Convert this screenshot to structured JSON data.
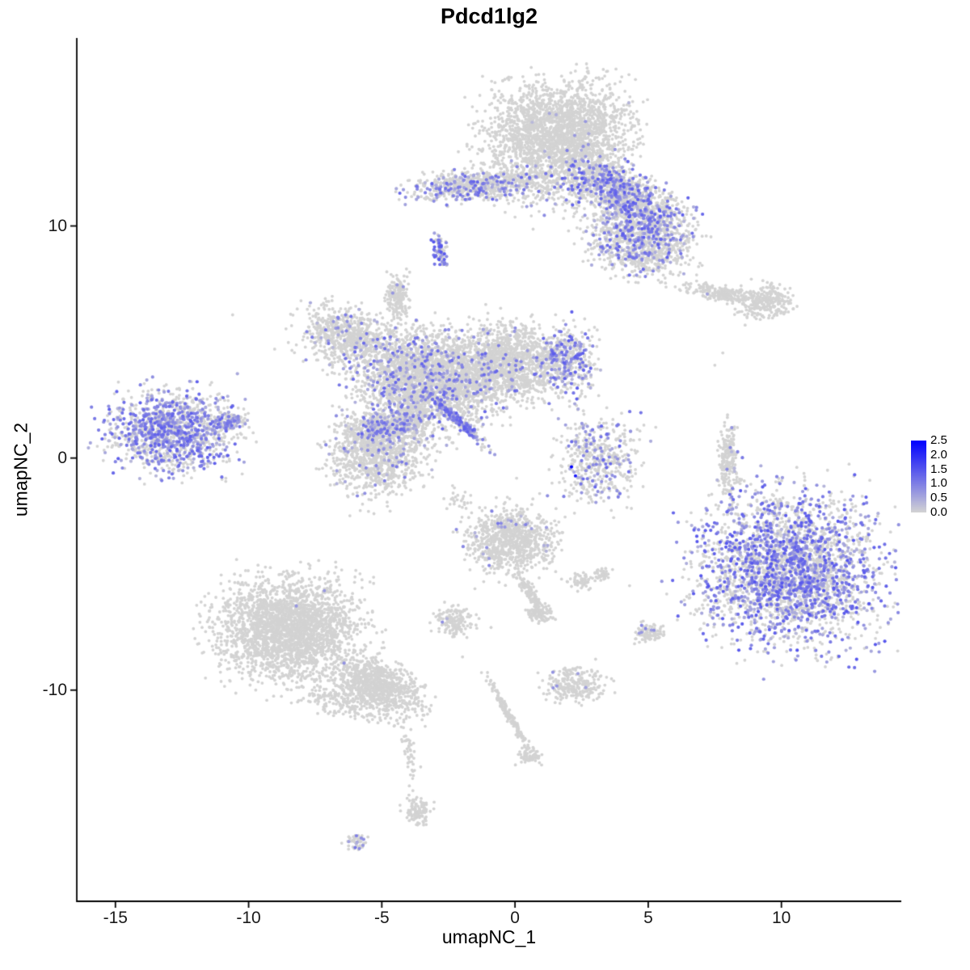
{
  "title": "Pdcd1lg2",
  "colors": {
    "background": "#FFFFFF",
    "axis": "#000000",
    "point_base": "#D3D3D3",
    "point_high": "#0000FF"
  },
  "axes": {
    "x": {
      "label": "umapNC_1",
      "ticks": [
        -15,
        -10,
        -5,
        0,
        5,
        10
      ]
    },
    "y": {
      "label": "umapNC_2",
      "ticks": [
        -10,
        0,
        10
      ]
    }
  },
  "legend": {
    "ticks": [
      "2.5",
      "2.0",
      "1.5",
      "1.0",
      "0.5",
      "0.0"
    ],
    "vmin": 0.0,
    "vmax": 2.5,
    "color_high": "#0000FF",
    "color_mid": "#6969E9",
    "color_low": "#D3D3D3"
  },
  "chart_data": {
    "type": "scatter",
    "title": "Pdcd1lg2",
    "xlabel": "umapNC_1",
    "ylabel": "umapNC_2",
    "xlim": [
      -16.45,
      14.5
    ],
    "ylim": [
      -19.1,
      18.1
    ],
    "grid": false,
    "legend_position": "right",
    "expression_range": [
      0,
      2.5
    ],
    "description": "UMAP feature plot of Pdcd1lg2 expression; grey = 0, blue gradient = expression level. Clusters given as gaussian blob summaries in data coordinates.",
    "clusters": [
      {
        "name": "top-main-blob",
        "cx": 1.7,
        "cy": 13.9,
        "rx": 2.35,
        "ry": 2.0,
        "rot": 0,
        "n": 2400,
        "expr_frac": 0.004,
        "expr_range": [
          0.3,
          0.9
        ]
      },
      {
        "name": "top-right-wing",
        "cx": 4.1,
        "cy": 11.2,
        "rx": 2.2,
        "ry": 1.0,
        "rot": -34,
        "n": 1300,
        "expr_frac": 0.28,
        "expr_range": [
          0.3,
          1.4
        ]
      },
      {
        "name": "top-right-lower-lobe",
        "cx": 4.67,
        "cy": 9.3,
        "rx": 1.7,
        "ry": 1.3,
        "rot": -10,
        "n": 900,
        "expr_frac": 0.22,
        "expr_range": [
          0.3,
          1.4
        ]
      },
      {
        "name": "top-left-arm",
        "cx": -1.58,
        "cy": 11.74,
        "rx": 2.2,
        "ry": 0.55,
        "rot": 5,
        "n": 600,
        "expr_frac": 0.2,
        "expr_range": [
          0.3,
          1.3
        ]
      },
      {
        "name": "top-sparse-mid",
        "cx": 0.97,
        "cy": 11.74,
        "rx": 2.4,
        "ry": 1.3,
        "rot": 0,
        "n": 260,
        "expr_frac": 0.12,
        "expr_range": [
          0.3,
          1.2
        ]
      },
      {
        "name": "small-purple-dash",
        "cx": -2.82,
        "cy": 8.95,
        "rx": 0.22,
        "ry": 0.55,
        "rot": 10,
        "n": 90,
        "expr_frac": 0.45,
        "expr_range": [
          0.5,
          1.5
        ]
      },
      {
        "name": "right-thin-strip",
        "cx": 7.7,
        "cy": 7.1,
        "rx": 1.15,
        "ry": 0.3,
        "rot": -12,
        "n": 220,
        "expr_frac": 0.005,
        "expr_range": [
          0.3,
          0.8
        ]
      },
      {
        "name": "right-small-blob",
        "cx": 9.45,
        "cy": 6.7,
        "rx": 0.9,
        "ry": 0.65,
        "rot": 20,
        "n": 260,
        "expr_frac": 0.005,
        "expr_range": [
          0.3,
          0.8
        ]
      },
      {
        "name": "central-stem",
        "cx": -4.42,
        "cy": 6.97,
        "rx": 0.42,
        "ry": 0.9,
        "rot": 0,
        "n": 180,
        "expr_frac": 0.02,
        "expr_range": [
          0.3,
          0.9
        ]
      },
      {
        "name": "central-left-lobe",
        "cx": -6.36,
        "cy": 5.26,
        "rx": 1.5,
        "ry": 1.1,
        "rot": -20,
        "n": 650,
        "expr_frac": 0.07,
        "expr_range": [
          0.3,
          1.2
        ]
      },
      {
        "name": "central-main-mass",
        "cx": -3.33,
        "cy": 3.45,
        "rx": 2.4,
        "ry": 1.75,
        "rot": -15,
        "n": 2600,
        "expr_frac": 0.13,
        "expr_range": [
          0.3,
          1.3
        ]
      },
      {
        "name": "central-right-lobe",
        "cx": -0.3,
        "cy": 4.15,
        "rx": 1.7,
        "ry": 1.5,
        "rot": 0,
        "n": 1300,
        "expr_frac": 0.04,
        "expr_range": [
          0.3,
          1.1
        ]
      },
      {
        "name": "central-right-lobe-high",
        "cx": 1.88,
        "cy": 4.18,
        "rx": 0.9,
        "ry": 1.35,
        "rot": 0,
        "n": 450,
        "expr_frac": 0.35,
        "expr_range": [
          0.3,
          1.4
        ]
      },
      {
        "name": "central-lower-blob",
        "cx": -5.18,
        "cy": 0.24,
        "rx": 1.6,
        "ry": 1.6,
        "rot": 0,
        "n": 1100,
        "expr_frac": 0.05,
        "expr_range": [
          0.3,
          1.1
        ]
      },
      {
        "name": "central-lower-top-band",
        "cx": -4.85,
        "cy": 1.36,
        "rx": 1.3,
        "ry": 0.5,
        "rot": 10,
        "n": 300,
        "expr_frac": 0.35,
        "expr_range": [
          0.3,
          1.3
        ]
      },
      {
        "name": "central-diagonal-streak",
        "cx": -2.15,
        "cy": 1.64,
        "rx": 1.33,
        "ry": 0.16,
        "rot": -47,
        "n": 220,
        "expr_frac": 0.5,
        "expr_range": [
          0.4,
          1.4
        ]
      },
      {
        "name": "central-bridge",
        "cx": -3.88,
        "cy": 1.46,
        "rx": 0.8,
        "ry": 0.7,
        "rot": 0,
        "n": 150,
        "expr_frac": 0.15,
        "expr_range": [
          0.3,
          1.2
        ]
      },
      {
        "name": "left-cluster",
        "cx": -12.88,
        "cy": 1.15,
        "rx": 2.1,
        "ry": 1.5,
        "rot": 5,
        "n": 1300,
        "expr_frac": 0.45,
        "expr_range": [
          0.3,
          1.4
        ]
      },
      {
        "name": "left-cluster-nose",
        "cx": -10.7,
        "cy": 1.53,
        "rx": 0.55,
        "ry": 0.3,
        "rot": 0,
        "n": 90,
        "expr_frac": 0.3,
        "expr_range": [
          0.3,
          1.2
        ]
      },
      {
        "name": "mid-right-small",
        "cx": 3.09,
        "cy": -0.03,
        "rx": 1.35,
        "ry": 1.5,
        "rot": 0,
        "n": 480,
        "expr_frac": 0.22,
        "expr_range": [
          0.3,
          1.3
        ]
      },
      {
        "name": "right-thin-vertical",
        "cx": 8.0,
        "cy": 0.0,
        "rx": 0.3,
        "ry": 1.45,
        "rot": 0,
        "n": 230,
        "expr_frac": 0.07,
        "expr_range": [
          0.3,
          1.0
        ]
      },
      {
        "name": "right-big-cluster",
        "cx": 10.3,
        "cy": -4.74,
        "rx": 2.9,
        "ry": 2.8,
        "rot": 0,
        "n": 3000,
        "expr_frac": 0.42,
        "expr_range": [
          0.3,
          1.5
        ]
      },
      {
        "name": "bottom-center-head",
        "cx": -0.15,
        "cy": -3.52,
        "rx": 1.45,
        "ry": 1.2,
        "rot": 0,
        "n": 850,
        "expr_frac": 0.02,
        "expr_range": [
          0.3,
          1.0
        ]
      },
      {
        "name": "bottom-center-tail",
        "cx": 0.55,
        "cy": -5.75,
        "rx": 0.8,
        "ry": 0.2,
        "rot": -60,
        "n": 120,
        "expr_frac": 0,
        "expr_range": [
          0.3,
          0.8
        ]
      },
      {
        "name": "bottom-center-tail-blob",
        "cx": 0.91,
        "cy": -6.72,
        "rx": 0.45,
        "ry": 0.35,
        "rot": 0,
        "n": 90,
        "expr_frac": 0,
        "expr_range": [
          0.3,
          0.8
        ]
      },
      {
        "name": "tiny-blob-a",
        "cx": 2.55,
        "cy": -5.3,
        "rx": 0.35,
        "ry": 0.28,
        "rot": 0,
        "n": 55,
        "expr_frac": 0,
        "expr_range": [
          0.3,
          0.8
        ]
      },
      {
        "name": "tiny-blob-b",
        "cx": 3.27,
        "cy": -5.02,
        "rx": 0.28,
        "ry": 0.22,
        "rot": 0,
        "n": 40,
        "expr_frac": 0,
        "expr_range": [
          0.3,
          0.8
        ]
      },
      {
        "name": "small-blob-left",
        "cx": -2.3,
        "cy": -7.04,
        "rx": 0.6,
        "ry": 0.55,
        "rot": 0,
        "n": 160,
        "expr_frac": 0.02,
        "expr_range": [
          0.3,
          0.9
        ]
      },
      {
        "name": "small-blob-right",
        "cx": 4.97,
        "cy": -7.53,
        "rx": 0.5,
        "ry": 0.35,
        "rot": 0,
        "n": 90,
        "expr_frac": 0.03,
        "expr_range": [
          0.3,
          0.9
        ]
      },
      {
        "name": "bottom-left-head",
        "cx": -8.48,
        "cy": -7.35,
        "rx": 2.3,
        "ry": 1.9,
        "rot": 0,
        "n": 2600,
        "expr_frac": 0.002,
        "expr_range": [
          0.3,
          0.8
        ]
      },
      {
        "name": "bottom-left-tail",
        "cx": -5.15,
        "cy": -9.79,
        "rx": 1.6,
        "ry": 0.85,
        "rot": -28,
        "n": 900,
        "expr_frac": 0.002,
        "expr_range": [
          0.3,
          0.8
        ]
      },
      {
        "name": "bottom-left-fringe",
        "cx": -6.3,
        "cy": -10.56,
        "rx": 1.8,
        "ry": 0.6,
        "rot": -15,
        "n": 200,
        "expr_frac": 0,
        "expr_range": [
          0.3,
          0.8
        ]
      },
      {
        "name": "bottom-small-cluster",
        "cx": 2.27,
        "cy": -9.83,
        "rx": 0.95,
        "ry": 0.7,
        "rot": 0,
        "n": 260,
        "expr_frac": 0.01,
        "expr_range": [
          0.3,
          0.8
        ]
      },
      {
        "name": "dots-line-down",
        "cx": -3.94,
        "cy": -12.82,
        "rx": 0.22,
        "ry": 1.5,
        "rot": 10,
        "n": 45,
        "expr_frac": 0,
        "expr_range": [
          0.3,
          0.8
        ]
      },
      {
        "name": "dots-line-end-blob",
        "cx": -3.64,
        "cy": -15.19,
        "rx": 0.4,
        "ry": 0.5,
        "rot": 0,
        "n": 110,
        "expr_frac": 0,
        "expr_range": [
          0.3,
          0.8
        ]
      },
      {
        "name": "thin-streak-bottom",
        "cx": -0.18,
        "cy": -11.18,
        "rx": 1.55,
        "ry": 0.12,
        "rot": -63,
        "n": 160,
        "expr_frac": 0,
        "expr_range": [
          0.3,
          0.8
        ]
      },
      {
        "name": "thin-streak-end",
        "cx": 0.58,
        "cy": -12.86,
        "rx": 0.38,
        "ry": 0.27,
        "rot": 0,
        "n": 70,
        "expr_frac": 0,
        "expr_range": [
          0.3,
          0.8
        ]
      },
      {
        "name": "tiny-bottom-dash",
        "cx": -5.94,
        "cy": -16.55,
        "rx": 0.4,
        "ry": 0.28,
        "rot": -30,
        "n": 55,
        "expr_frac": 0.25,
        "expr_range": [
          0.3,
          1.1
        ]
      },
      {
        "name": "mid-sparse",
        "cx": -2.1,
        "cy": -1.8,
        "rx": 0.5,
        "ry": 0.4,
        "rot": 0,
        "n": 25,
        "expr_frac": 0,
        "expr_range": [
          0.3,
          0.8
        ]
      }
    ],
    "extra_points": [
      {
        "x": 2.12,
        "y": -0.38,
        "v": 2.5
      },
      {
        "x": 2.27,
        "y": -0.77,
        "v": 2.2
      },
      {
        "x": 2.24,
        "y": 13.9,
        "v": 0.7
      },
      {
        "x": -0.64,
        "y": -2.82,
        "v": 1.1
      },
      {
        "x": -0.97,
        "y": -4.63,
        "v": 0.9
      },
      {
        "x": 4.9,
        "y": -7.35,
        "v": 0.9
      },
      {
        "x": -2.73,
        "y": -7.07,
        "v": 0.8
      },
      {
        "x": -10.6,
        "y": 6.17,
        "v": 0
      },
      {
        "x": 5.2,
        "y": 8.15,
        "v": 0
      },
      {
        "x": 0.6,
        "y": 15.6,
        "v": 0
      },
      {
        "x": 7.8,
        "y": 4.53,
        "v": 0
      },
      {
        "x": 7.5,
        "y": 4.0,
        "v": 0
      },
      {
        "x": 4.2,
        "y": -2.13,
        "v": 0
      },
      {
        "x": 1.88,
        "y": -2.54,
        "v": 0
      },
      {
        "x": -0.9,
        "y": -7.3,
        "v": 0
      },
      {
        "x": -1.97,
        "y": -8.57,
        "v": 0
      },
      {
        "x": 4.3,
        "y": -5.5,
        "v": 0
      },
      {
        "x": 0.06,
        "y": -0.87,
        "v": 0
      },
      {
        "x": 8.2,
        "y": -1.9,
        "v": 0
      },
      {
        "x": -4.8,
        "y": -1.9,
        "v": 0
      },
      {
        "x": -5.5,
        "y": -2.3,
        "v": 0
      }
    ]
  }
}
